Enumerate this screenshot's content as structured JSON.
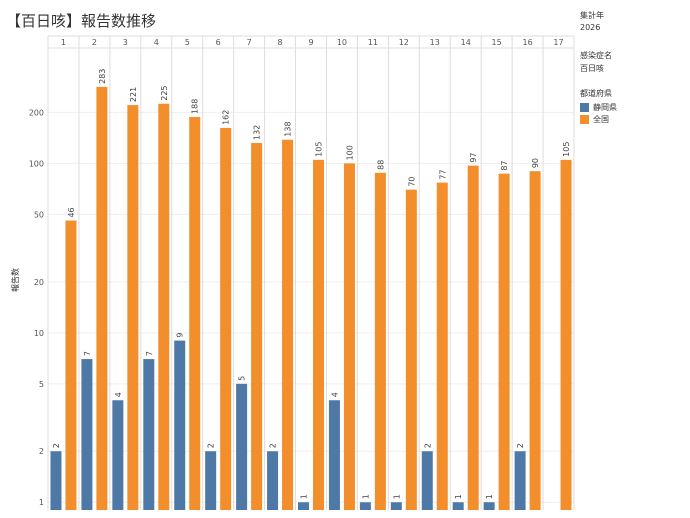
{
  "title": "【百日咳】報告数推移",
  "sidebar": {
    "year_label": "集計年",
    "year_value": "2026",
    "disease_label": "感染症名",
    "disease_value": "百日咳",
    "region_label": "都道府県",
    "legend": [
      {
        "name": "静岡県",
        "color": "#4e79a7"
      },
      {
        "name": "全国",
        "color": "#f28e2b"
      }
    ]
  },
  "chart_data": {
    "type": "bar",
    "ylabel": "報告数",
    "yscale": "log",
    "ylim": [
      0.9,
      480
    ],
    "yticks": [
      1,
      2,
      5,
      10,
      20,
      50,
      100,
      200
    ],
    "categories": [
      "1",
      "2",
      "3",
      "4",
      "5",
      "6",
      "7",
      "8",
      "9",
      "10",
      "11",
      "12",
      "13",
      "14",
      "15",
      "16",
      "17"
    ],
    "grid": true,
    "series": [
      {
        "name": "静岡県",
        "color": "#4e79a7",
        "values": [
          2,
          7,
          4,
          7,
          9,
          2,
          5,
          2,
          1,
          4,
          1,
          1,
          2,
          1,
          1,
          2,
          null
        ]
      },
      {
        "name": "全国",
        "color": "#f28e2b",
        "values": [
          46,
          283,
          221,
          225,
          188,
          162,
          132,
          138,
          105,
          100,
          88,
          70,
          77,
          97,
          87,
          90,
          105
        ]
      }
    ]
  }
}
